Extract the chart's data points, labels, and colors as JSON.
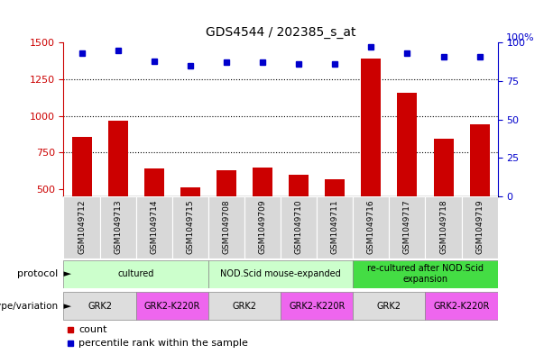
{
  "title": "GDS4544 / 202385_s_at",
  "samples": [
    "GSM1049712",
    "GSM1049713",
    "GSM1049714",
    "GSM1049715",
    "GSM1049708",
    "GSM1049709",
    "GSM1049710",
    "GSM1049711",
    "GSM1049716",
    "GSM1049717",
    "GSM1049718",
    "GSM1049719"
  ],
  "counts": [
    855,
    965,
    640,
    510,
    630,
    645,
    600,
    565,
    1390,
    1160,
    845,
    940
  ],
  "percentile": [
    93,
    95,
    88,
    85,
    87,
    87,
    86,
    86,
    97,
    93,
    91,
    91
  ],
  "bar_color": "#cc0000",
  "dot_color": "#0000cc",
  "ylim_left": [
    450,
    1500
  ],
  "ylim_right": [
    0,
    100
  ],
  "yticks_left": [
    500,
    750,
    1000,
    1250,
    1500
  ],
  "yticks_right": [
    0,
    25,
    50,
    75,
    100
  ],
  "protocol_groups": [
    {
      "label": "cultured",
      "start": 0,
      "end": 4,
      "color": "#ccffcc"
    },
    {
      "label": "NOD.Scid mouse-expanded",
      "start": 4,
      "end": 8,
      "color": "#ccffcc"
    },
    {
      "label": "re-cultured after NOD.Scid\nexpansion",
      "start": 8,
      "end": 12,
      "color": "#44dd44"
    }
  ],
  "genotype_groups": [
    {
      "label": "GRK2",
      "start": 0,
      "end": 2,
      "color": "#dddddd"
    },
    {
      "label": "GRK2-K220R",
      "start": 2,
      "end": 4,
      "color": "#ee66ee"
    },
    {
      "label": "GRK2",
      "start": 4,
      "end": 6,
      "color": "#dddddd"
    },
    {
      "label": "GRK2-K220R",
      "start": 6,
      "end": 8,
      "color": "#ee66ee"
    },
    {
      "label": "GRK2",
      "start": 8,
      "end": 10,
      "color": "#dddddd"
    },
    {
      "label": "GRK2-K220R",
      "start": 10,
      "end": 12,
      "color": "#ee66ee"
    }
  ],
  "legend_items": [
    {
      "label": "count",
      "color": "#cc0000"
    },
    {
      "label": "percentile rank within the sample",
      "color": "#0000cc"
    }
  ],
  "fig_width": 6.13,
  "fig_height": 3.93,
  "dpi": 100
}
